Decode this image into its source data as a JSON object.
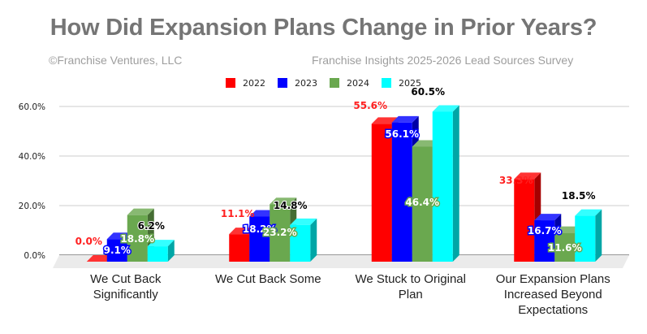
{
  "header": {
    "title": "How Did Expansion Plans Change in Prior Years?",
    "copyright": "©Franchise Ventures, LLC",
    "source": "Franchise Insights 2025-2026 Lead Sources Survey"
  },
  "chart_data": {
    "type": "bar",
    "style": "3d-clustered-column",
    "title": "How Did Expansion Plans Change in Prior Years?",
    "xlabel": "",
    "ylabel": "",
    "ylim": [
      0,
      60
    ],
    "yticks": [
      0,
      20,
      40,
      60
    ],
    "ytick_labels": [
      "0.0%",
      "20.0%",
      "40.0%",
      "60.0%"
    ],
    "grid": true,
    "legend_position": "top",
    "categories": [
      [
        "We Cut Back",
        "Significantly"
      ],
      [
        "We Cut Back Some"
      ],
      [
        "We Stuck to Original",
        "Plan"
      ],
      [
        "Our Expansion Plans",
        "Increased Beyond",
        "Expectations"
      ]
    ],
    "series": [
      {
        "name": "2022",
        "color": "#ff0000",
        "label_color": "#ff2020",
        "values": [
          0.0,
          11.1,
          55.6,
          33.3
        ],
        "labels": [
          "0.0%",
          "11.1%",
          "55.6%",
          "33.3%"
        ]
      },
      {
        "name": "2023",
        "color": "#0000ff",
        "label_color": "#ffffff",
        "values": [
          9.1,
          18.2,
          56.1,
          16.7
        ],
        "labels": [
          "9.1%",
          "18.2%",
          "56.1%",
          "16.7%"
        ]
      },
      {
        "name": "2024",
        "color": "#6aa84f",
        "label_color": "#ffffff",
        "values": [
          18.8,
          23.2,
          46.4,
          11.6
        ],
        "labels": [
          "18.8%",
          "23.2%",
          "46.4%",
          "11.6%"
        ]
      },
      {
        "name": "2025",
        "color": "#00ffff",
        "label_color": "#000000",
        "values": [
          6.2,
          14.8,
          60.5,
          18.5
        ],
        "labels": [
          "6.2%",
          "14.8%",
          "60.5%",
          "18.5%"
        ]
      }
    ]
  }
}
